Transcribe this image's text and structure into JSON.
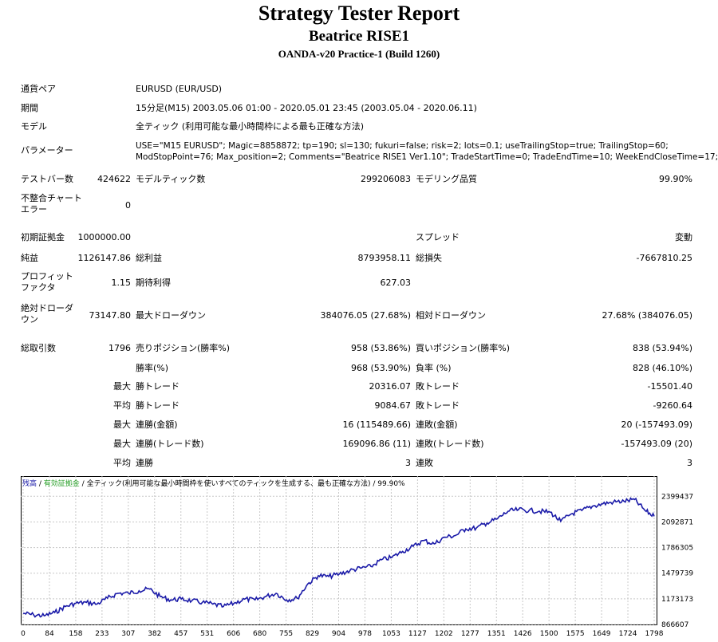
{
  "title": "Strategy Tester Report",
  "expert": "Beatrice RISE1",
  "server": "OANDA-v20 Practice-1 (Build 1260)",
  "info": {
    "symbol_label": "通貨ペア",
    "symbol_value": "EURUSD (EUR/USD)",
    "period_label": "期間",
    "period_value": "15分足(M15) 2003.05.06 01:00 - 2020.05.01 23:45 (2003.05.04 - 2020.06.11)",
    "model_label": "モデル",
    "model_value": "全ティック (利用可能な最小時間枠による最も正確な方法)",
    "params_label": "パラメーター",
    "params_line1": "USE=\"M15 EURUSD\"; Magic=8858872; tp=190; sl=130; fukuri=false; risk=2; lots=0.1; useTrailingStop=true; TrailingStop=60;",
    "params_line2": "ModStopPoint=76; Max_position=2; Comments=\"Beatrice RISE1 Ver1.10\"; TradeStartTime=0; TradeEndTime=10; WeekEndCloseTime=17;"
  },
  "stats": {
    "bars_label": "テストバー数",
    "bars_value": "424622",
    "ticks_label": "モデルティック数",
    "ticks_value": "299206083",
    "quality_label": "モデリング品質",
    "quality_value": "99.90%",
    "mismatch_label": "不整合チャートエラー",
    "mismatch_value": "0",
    "deposit_label": "初期証拠金",
    "deposit_value": "1000000.00",
    "spread_label": "スプレッド",
    "spread_value": "変動",
    "net_label": "純益",
    "net_value": "1126147.86",
    "gross_profit_label": "総利益",
    "gross_profit_value": "8793958.11",
    "gross_loss_label": "総損失",
    "gross_loss_value": "-7667810.25",
    "pf_label": "プロフィットファクタ",
    "pf_value": "1.15",
    "payoff_label": "期待利得",
    "payoff_value": "627.03",
    "abs_dd_label": "絶対ドローダウン",
    "abs_dd_value": "73147.80",
    "max_dd_label": "最大ドローダウン",
    "max_dd_value": "384076.05 (27.68%)",
    "rel_dd_label": "相対ドローダウン",
    "rel_dd_value": "27.68% (384076.05)",
    "trades_label": "総取引数",
    "trades_value": "1796",
    "short_label": "売りポジション(勝率%)",
    "short_value": "958 (53.86%)",
    "long_label": "買いポジション(勝率%)",
    "long_value": "838 (53.94%)",
    "win_label": "勝率(%)",
    "win_value": "968 (53.90%)",
    "loss_label": "負率 (%)",
    "loss_value": "828 (46.10%)",
    "max_word": "最大",
    "avg_word": "平均",
    "largest_win_label": "勝トレード",
    "largest_win_value": "20316.07",
    "largest_loss_label": "敗トレード",
    "largest_loss_value": "-15501.40",
    "avg_win_label": "勝トレード",
    "avg_win_value": "9084.67",
    "avg_loss_label": "敗トレード",
    "avg_loss_value": "-9260.64",
    "cons_wins_amt_label": "連勝(金額)",
    "cons_wins_amt_value": "16 (115489.66)",
    "cons_loss_amt_label": "連敗(金額)",
    "cons_loss_amt_value": "20 (-157493.09)",
    "cons_wins_cnt_label": "連勝(トレード数)",
    "cons_wins_cnt_value": "169096.86 (11)",
    "cons_loss_cnt_label": "連敗(トレード数)",
    "cons_loss_cnt_value": "-157493.09 (20)",
    "avg_cons_win_label": "連勝",
    "avg_cons_win_value": "3",
    "avg_cons_loss_label": "連敗",
    "avg_cons_loss_value": "3"
  },
  "chart_legend": {
    "balance": "残高",
    "sep1": " / ",
    "equity": "有効証拠金",
    "sep2": " / ",
    "desc": "全ティック(利用可能な最小時間枠を使いすべてのティックを生成する、最も正確な方法)",
    "quality": " / 99.90%"
  },
  "colors": {
    "line": "#1a1aa8",
    "balance_legend": "#1a1aa8",
    "equity_legend": "#2aa02a"
  },
  "chart_data": {
    "type": "line",
    "title": "",
    "xlabel": "",
    "ylabel": "",
    "x_ticks": [
      "0",
      "84",
      "158",
      "233",
      "307",
      "382",
      "457",
      "531",
      "606",
      "680",
      "755",
      "829",
      "904",
      "978",
      "1053",
      "1127",
      "1202",
      "1277",
      "1351",
      "1426",
      "1500",
      "1575",
      "1649",
      "1724",
      "1798"
    ],
    "y_ticks": [
      "2399437",
      "2092871",
      "1786305",
      "1479739",
      "1173173",
      "866607"
    ],
    "xlim": [
      0,
      1796
    ],
    "ylim": [
      866607,
      2450000
    ],
    "grid": true,
    "series": [
      {
        "x": [
          0,
          30,
          60,
          90,
          120,
          150,
          180,
          210,
          240,
          270,
          300,
          330,
          360,
          390,
          420,
          450,
          480,
          510,
          540,
          570,
          600,
          630,
          660,
          690,
          720,
          750,
          780,
          810,
          840,
          870,
          900,
          930,
          960,
          990,
          1020,
          1050,
          1080,
          1110,
          1140,
          1170,
          1200,
          1230,
          1260,
          1290,
          1320,
          1350,
          1380,
          1410,
          1440,
          1470,
          1500,
          1530,
          1560,
          1590,
          1620,
          1650,
          1680,
          1710,
          1740,
          1770,
          1796
        ],
        "y": [
          1000000,
          980000,
          970000,
          1010000,
          1080000,
          1120000,
          1130000,
          1110000,
          1180000,
          1240000,
          1240000,
          1270000,
          1290000,
          1200000,
          1160000,
          1170000,
          1150000,
          1130000,
          1110000,
          1080000,
          1120000,
          1170000,
          1160000,
          1200000,
          1240000,
          1160000,
          1180000,
          1350000,
          1450000,
          1440000,
          1470000,
          1510000,
          1540000,
          1560000,
          1640000,
          1670000,
          1740000,
          1800000,
          1870000,
          1830000,
          1910000,
          1930000,
          2010000,
          2020000,
          2080000,
          2130000,
          2220000,
          2240000,
          2230000,
          2220000,
          2210000,
          2100000,
          2190000,
          2230000,
          2280000,
          2310000,
          2330000,
          2340000,
          2360000,
          2230000,
          2160000
        ]
      }
    ]
  }
}
